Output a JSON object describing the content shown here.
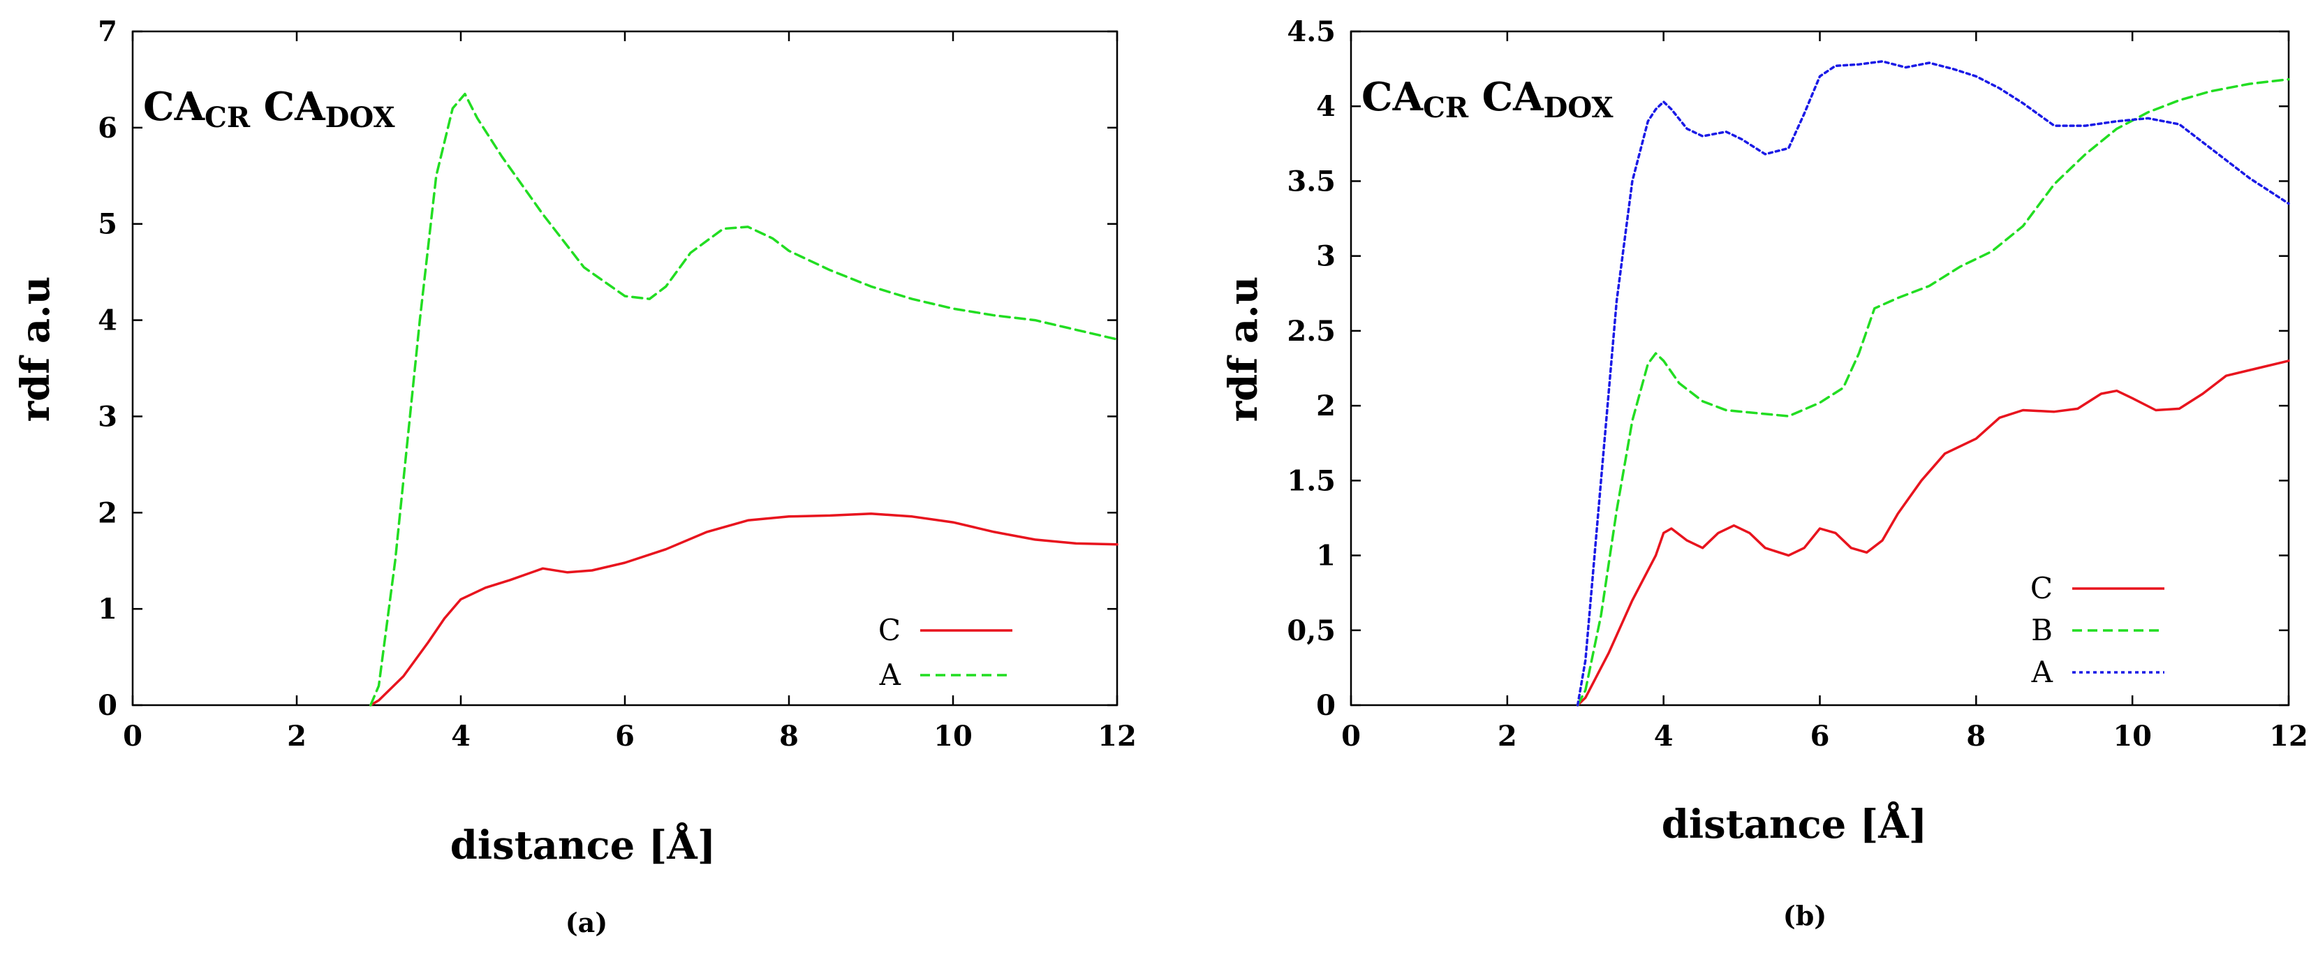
{
  "chart_data": [
    {
      "type": "line",
      "panel_label": "(a)",
      "annotation": {
        "prefix1": "CA",
        "sub1": "CR",
        "prefix2": "CA",
        "sub2": "DOX"
      },
      "xlabel": "distance [Å]",
      "ylabel": "rdf a.u",
      "xlim": [
        0,
        12
      ],
      "ylim": [
        0,
        7
      ],
      "xticks": [
        "0",
        "2",
        "4",
        "6",
        "8",
        "10",
        "12"
      ],
      "yticks": [
        "0",
        "1",
        "2",
        "3",
        "4",
        "5",
        "6",
        "7"
      ],
      "legend_position": "bottom-right",
      "series": [
        {
          "name": "C",
          "color": "#e8141e",
          "style": "solid",
          "x": [
            2.9,
            3.0,
            3.3,
            3.6,
            3.8,
            4.0,
            4.3,
            4.6,
            5.0,
            5.3,
            5.6,
            6.0,
            6.5,
            7.0,
            7.5,
            8.0,
            8.5,
            9.0,
            9.5,
            10.0,
            10.5,
            11.0,
            11.5,
            12.0
          ],
          "y": [
            0.0,
            0.05,
            0.3,
            0.65,
            0.9,
            1.1,
            1.22,
            1.3,
            1.42,
            1.38,
            1.4,
            1.48,
            1.62,
            1.8,
            1.92,
            1.96,
            1.97,
            1.99,
            1.96,
            1.9,
            1.8,
            1.72,
            1.68,
            1.67
          ]
        },
        {
          "name": "A",
          "color": "#22dd22",
          "style": "dashed",
          "x": [
            2.9,
            3.0,
            3.2,
            3.5,
            3.7,
            3.9,
            4.05,
            4.2,
            4.5,
            5.0,
            5.5,
            6.0,
            6.3,
            6.5,
            6.8,
            7.2,
            7.5,
            7.8,
            8.0,
            8.5,
            9.0,
            9.5,
            10.0,
            10.5,
            11.0,
            11.5,
            12.0
          ],
          "y": [
            0.0,
            0.2,
            1.5,
            4.0,
            5.5,
            6.2,
            6.35,
            6.1,
            5.7,
            5.1,
            4.55,
            4.25,
            4.22,
            4.35,
            4.7,
            4.95,
            4.97,
            4.85,
            4.72,
            4.52,
            4.35,
            4.22,
            4.12,
            4.05,
            4.0,
            3.9,
            3.8
          ]
        }
      ]
    },
    {
      "type": "line",
      "panel_label": "(b)",
      "annotation": {
        "prefix1": "CA",
        "sub1": "CR",
        "prefix2": "CA",
        "sub2": "DOX"
      },
      "xlabel": "distance [Å]",
      "ylabel": "rdf a.u",
      "xlim": [
        0,
        12
      ],
      "ylim": [
        0,
        4.5
      ],
      "xticks": [
        "0",
        "2",
        "4",
        "6",
        "8",
        "10",
        "12"
      ],
      "yticks": [
        "0",
        "0,5",
        "1",
        "1.5",
        "2",
        "2.5",
        "3",
        "3.5",
        "4",
        "4.5"
      ],
      "legend_position": "bottom-right",
      "series": [
        {
          "name": "C",
          "color": "#e8141e",
          "style": "solid",
          "x": [
            2.9,
            3.0,
            3.3,
            3.6,
            3.9,
            4.0,
            4.1,
            4.3,
            4.5,
            4.7,
            4.9,
            5.1,
            5.3,
            5.6,
            5.8,
            6.0,
            6.2,
            6.4,
            6.6,
            6.8,
            7.0,
            7.3,
            7.6,
            8.0,
            8.3,
            8.6,
            9.0,
            9.3,
            9.6,
            9.8,
            10.0,
            10.3,
            10.6,
            10.9,
            11.2,
            11.6,
            12.0
          ],
          "y": [
            0.0,
            0.05,
            0.35,
            0.7,
            1.0,
            1.15,
            1.18,
            1.1,
            1.05,
            1.15,
            1.2,
            1.15,
            1.05,
            1.0,
            1.05,
            1.18,
            1.15,
            1.05,
            1.02,
            1.1,
            1.28,
            1.5,
            1.68,
            1.78,
            1.92,
            1.97,
            1.96,
            1.98,
            2.08,
            2.1,
            2.05,
            1.97,
            1.98,
            2.08,
            2.2,
            2.25,
            2.3
          ]
        },
        {
          "name": "B",
          "color": "#22dd22",
          "style": "dashed",
          "x": [
            2.9,
            3.0,
            3.2,
            3.4,
            3.6,
            3.8,
            3.9,
            4.0,
            4.2,
            4.5,
            4.8,
            5.2,
            5.6,
            6.0,
            6.3,
            6.5,
            6.7,
            7.0,
            7.4,
            7.8,
            8.2,
            8.6,
            9.0,
            9.4,
            9.8,
            10.2,
            10.6,
            11.0,
            11.5,
            12.0
          ],
          "y": [
            0.0,
            0.1,
            0.6,
            1.3,
            1.9,
            2.28,
            2.35,
            2.3,
            2.15,
            2.03,
            1.97,
            1.95,
            1.93,
            2.02,
            2.12,
            2.35,
            2.65,
            2.72,
            2.8,
            2.93,
            3.03,
            3.2,
            3.48,
            3.68,
            3.85,
            3.96,
            4.04,
            4.1,
            4.15,
            4.18
          ]
        },
        {
          "name": "A",
          "color": "#1a1ae6",
          "style": "dotted",
          "x": [
            2.9,
            3.0,
            3.2,
            3.4,
            3.6,
            3.8,
            3.9,
            4.0,
            4.1,
            4.3,
            4.5,
            4.8,
            5.0,
            5.3,
            5.6,
            5.8,
            6.0,
            6.2,
            6.5,
            6.8,
            7.1,
            7.4,
            7.7,
            8.0,
            8.3,
            8.6,
            9.0,
            9.4,
            9.8,
            10.2,
            10.6,
            11.0,
            11.5,
            12.0
          ],
          "y": [
            0.0,
            0.3,
            1.5,
            2.7,
            3.5,
            3.9,
            3.98,
            4.03,
            3.98,
            3.85,
            3.8,
            3.83,
            3.78,
            3.68,
            3.72,
            3.95,
            4.2,
            4.27,
            4.28,
            4.3,
            4.26,
            4.29,
            4.25,
            4.2,
            4.12,
            4.02,
            3.87,
            3.87,
            3.9,
            3.92,
            3.88,
            3.72,
            3.52,
            3.35
          ]
        }
      ]
    }
  ]
}
